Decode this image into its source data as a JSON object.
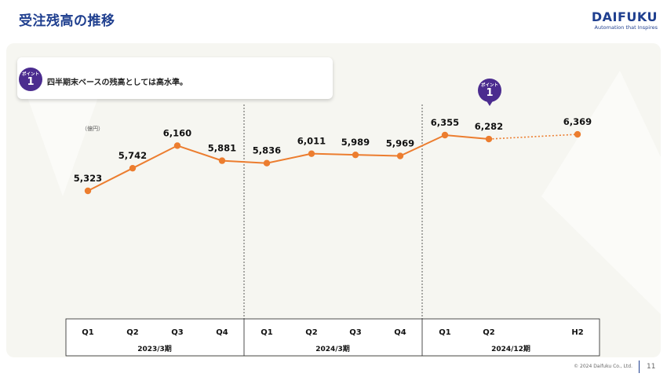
{
  "header": {
    "title": "受注残高の推移",
    "logo_brand": "DAIFUKU",
    "logo_tagline": "Automation that Inspires"
  },
  "callout": {
    "badge_small": "ポイント",
    "badge_num": "1",
    "text": "四半期末ベースの残高としては高水準。"
  },
  "marker": {
    "badge_small": "ポイント",
    "badge_num": "1"
  },
  "footer": {
    "copyright": "© 2024 Daifuku Co., Ltd.",
    "page": "11"
  },
  "colors": {
    "title": "#1f3f8f",
    "line": "#ec7d2f",
    "badge": "#4b2c8f",
    "panel": "#f6f6f1"
  },
  "chart_data": {
    "type": "line",
    "unit_label": "（億円）",
    "categories": [
      "Q1",
      "Q2",
      "Q3",
      "Q4",
      "Q1",
      "Q2",
      "Q3",
      "Q4",
      "Q1",
      "Q2",
      "H2"
    ],
    "groups": [
      {
        "label": "2023/3期",
        "categories": [
          "Q1",
          "Q2",
          "Q3",
          "Q4"
        ]
      },
      {
        "label": "2024/3期",
        "categories": [
          "Q1",
          "Q2",
          "Q3",
          "Q4"
        ]
      },
      {
        "label": "2024/12期",
        "categories": [
          "Q1",
          "Q2",
          "H2"
        ]
      }
    ],
    "values": [
      5323,
      5742,
      6160,
      5881,
      5836,
      6011,
      5989,
      5969,
      6355,
      6282,
      6369
    ],
    "value_labels": [
      "5,323",
      "5,742",
      "6,160",
      "5,881",
      "5,836",
      "6,011",
      "5,989",
      "5,969",
      "6,355",
      "6,282",
      "6,369"
    ],
    "dotted_last_segment": true,
    "group_separators": "dotted vertical lines",
    "grid": false,
    "legend": "none"
  }
}
